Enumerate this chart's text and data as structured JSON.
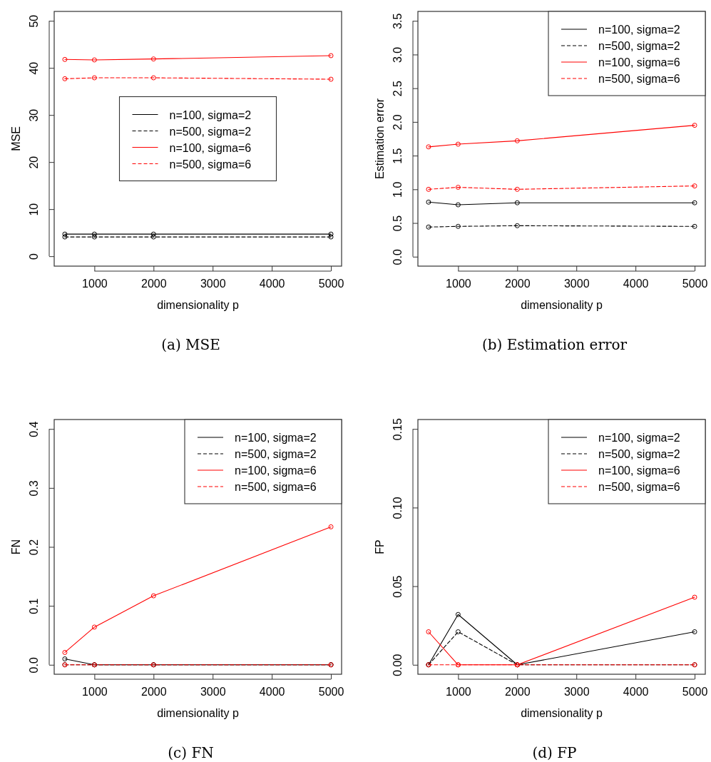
{
  "chart_data": [
    {
      "type": "line",
      "xlabel": "dimensionality p",
      "ylabel": "MSE",
      "x": [
        500,
        1000,
        2000,
        5000
      ],
      "xlim": [
        320,
        5180
      ],
      "xticks": [
        1000,
        2000,
        3000,
        4000,
        5000
      ],
      "ylim": [
        -2.1,
        52
      ],
      "yticks": [
        0,
        10,
        20,
        30,
        40,
        50
      ],
      "marker": "circle",
      "legend": "center",
      "annotations": [
        "(a) MSE"
      ],
      "series": [
        {
          "name": "n=100, sigma=2",
          "color": "#000000",
          "line_style": "solid",
          "values": [
            4.7,
            4.7,
            4.7,
            4.7
          ]
        },
        {
          "name": "n=500, sigma=2",
          "color": "#000000",
          "line_style": "dashed",
          "values": [
            4.1,
            4.1,
            4.1,
            4.1
          ]
        },
        {
          "name": "n=100, sigma=6",
          "color": "#ff0000",
          "line_style": "solid",
          "values": [
            41.8,
            41.7,
            41.9,
            42.6
          ]
        },
        {
          "name": "n=500, sigma=6",
          "color": "#ff0000",
          "line_style": "dashed",
          "values": [
            37.7,
            37.9,
            37.9,
            37.6
          ]
        }
      ]
    },
    {
      "type": "line",
      "xlabel": "dimensionality p",
      "ylabel": "Estimation error",
      "x": [
        500,
        1000,
        2000,
        5000
      ],
      "xlim": [
        320,
        5180
      ],
      "xticks": [
        1000,
        2000,
        3000,
        4000,
        5000
      ],
      "ylim": [
        -0.14,
        3.64
      ],
      "yticks": [
        {
          "value": 0,
          "label": "0.0"
        },
        0.5,
        {
          "value": 1,
          "label": "1.0"
        },
        1.5,
        {
          "value": 2,
          "label": "2.0"
        },
        2.5,
        {
          "value": 3,
          "label": "3.0"
        },
        3.5
      ],
      "marker": "circle",
      "legend": "top right",
      "annotations": [
        "(b) Estimation error"
      ],
      "series": [
        {
          "name": "n=100, sigma=2",
          "color": "#000000",
          "line_style": "solid",
          "values": [
            0.81,
            0.77,
            0.8,
            0.8
          ]
        },
        {
          "name": "n=500, sigma=2",
          "color": "#000000",
          "line_style": "dashed",
          "values": [
            0.44,
            0.45,
            0.46,
            0.45
          ]
        },
        {
          "name": "n=100, sigma=6",
          "color": "#ff0000",
          "line_style": "solid",
          "values": [
            1.63,
            1.67,
            1.72,
            1.95
          ]
        },
        {
          "name": "n=500, sigma=6",
          "color": "#ff0000",
          "line_style": "dashed",
          "values": [
            1.0,
            1.03,
            1.0,
            1.05
          ]
        }
      ]
    },
    {
      "type": "line",
      "xlabel": "dimensionality p",
      "ylabel": "FN",
      "x": [
        500,
        1000,
        2000,
        5000
      ],
      "xlim": [
        320,
        5180
      ],
      "xticks": [
        1000,
        2000,
        3000,
        4000,
        5000
      ],
      "ylim": [
        -0.016,
        0.416
      ],
      "yticks": [
        {
          "value": 0,
          "label": "0.0"
        },
        0.1,
        0.2,
        0.3,
        0.4
      ],
      "marker": "circle",
      "legend": "top right",
      "annotations": [
        "(c) FN"
      ],
      "series": [
        {
          "name": "n=100, sigma=2",
          "color": "#000000",
          "line_style": "solid",
          "values": [
            0.01,
            0,
            0,
            0
          ]
        },
        {
          "name": "n=500, sigma=2",
          "color": "#000000",
          "line_style": "dashed",
          "values": [
            0,
            0,
            0,
            0
          ]
        },
        {
          "name": "n=100, sigma=6",
          "color": "#ff0000",
          "line_style": "solid",
          "values": [
            0.021,
            0.064,
            0.117,
            0.234
          ]
        },
        {
          "name": "n=500, sigma=6",
          "color": "#ff0000",
          "line_style": "dashed",
          "values": [
            0,
            0,
            0,
            0
          ]
        }
      ]
    },
    {
      "type": "line",
      "xlabel": "dimensionality p",
      "ylabel": "FP",
      "x": [
        500,
        1000,
        2000,
        5000
      ],
      "xlim": [
        320,
        5180
      ],
      "xticks": [
        1000,
        2000,
        3000,
        4000,
        5000
      ],
      "ylim": [
        -0.006,
        0.156
      ],
      "yticks": [
        {
          "value": 0,
          "label": "0.00"
        },
        0.05,
        {
          "value": 0.1,
          "label": "0.10"
        },
        0.15
      ],
      "marker": "circle",
      "legend": "top right",
      "annotations": [
        "(d) FP"
      ],
      "series": [
        {
          "name": "n=100, sigma=2",
          "color": "#000000",
          "line_style": "solid",
          "values": [
            0,
            0.032,
            0,
            0.021
          ]
        },
        {
          "name": "n=500, sigma=2",
          "color": "#000000",
          "line_style": "dashed",
          "values": [
            0,
            0.021,
            0,
            0
          ]
        },
        {
          "name": "n=100, sigma=6",
          "color": "#ff0000",
          "line_style": "solid",
          "values": [
            0.021,
            0,
            0,
            0.043
          ]
        },
        {
          "name": "n=500, sigma=6",
          "color": "#ff0000",
          "line_style": "dashed",
          "values": [
            0,
            0,
            0,
            0
          ]
        }
      ]
    }
  ]
}
